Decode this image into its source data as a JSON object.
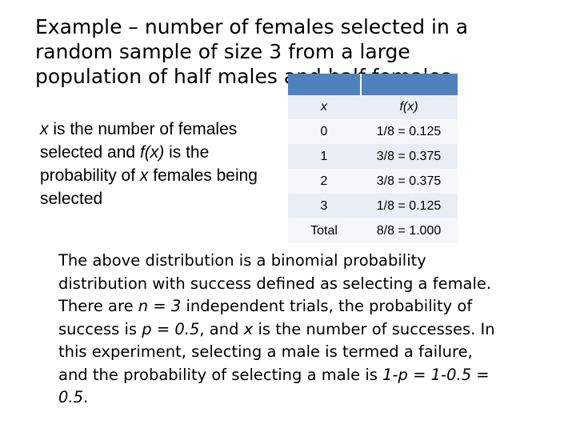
{
  "title": "Example – number of females selected in a random sample of size 3 from a large population of half males and half females.",
  "definition": {
    "x_var": "x",
    "text1": " is the number of females selected and ",
    "fx_var": "f(x)",
    "text2": " is the probability of ",
    "x_var2": "x",
    "text3": " females being selected"
  },
  "table": {
    "headers": [
      "x",
      "f(x)"
    ],
    "rows": [
      [
        "0",
        "1/8 = 0.125"
      ],
      [
        "1",
        "3/8 = 0.375"
      ],
      [
        "2",
        "3/8 = 0.375"
      ],
      [
        "3",
        "1/8 = 0.125"
      ],
      [
        "Total",
        "8/8 = 1.000"
      ]
    ]
  },
  "paragraph": {
    "t1": "The above distribution is a binomial probability distribution with success defined as selecting a female. There are ",
    "n_expr": "n = 3",
    "t2": " independent trials, the probability of success is ",
    "p_expr": "p = 0.5",
    "t3": ", and ",
    "x_var": "x",
    "t4": " is the number of successes.  In this experiment, selecting a male is termed a failure, and the probability of selecting a male is ",
    "fail_expr": "1-p = 1-0.5 = 0.5",
    "t5": "."
  }
}
